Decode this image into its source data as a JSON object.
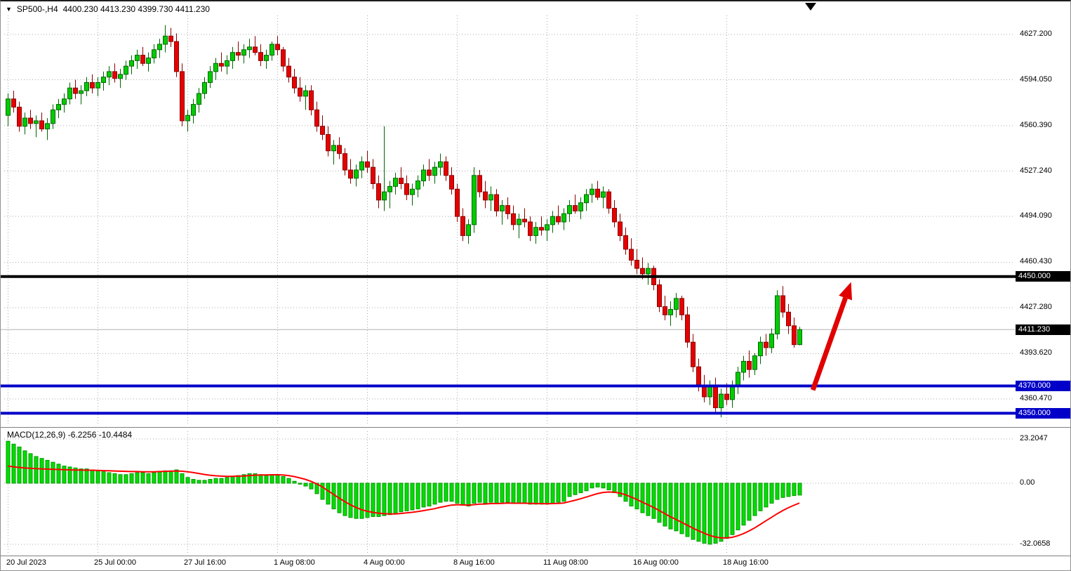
{
  "window": {
    "title": "SP500-,H4",
    "ohlc_text": "4400.230 4413.230 4399.730 4411.230"
  },
  "colors": {
    "background": "#FFFFFF",
    "grid": "#ABABAB",
    "bull": "#00CC00",
    "bull_stroke": "#006600",
    "bear": "#E60000",
    "bear_stroke": "#8B0000",
    "macd_bar": "#00DD00",
    "macd_bar_stroke": "#009900",
    "signal_line": "#FF0000",
    "current_price_line": "#B4B4B4",
    "badge_black": "#000000",
    "badge_blue": "#0000C8",
    "arrow": "#E00000",
    "text": "#000000"
  },
  "chart_data": [
    {
      "type": "candlestick",
      "symbol": "SP500-",
      "timeframe": "H4",
      "x_ticks": [
        {
          "label": "20 Jul 2023",
          "index": 0
        },
        {
          "label": "25 Jul 00:00",
          "index": 16
        },
        {
          "label": "27 Jul 16:00",
          "index": 32
        },
        {
          "label": "1 Aug 08:00",
          "index": 48
        },
        {
          "label": "4 Aug 00:00",
          "index": 64
        },
        {
          "label": "8 Aug 16:00",
          "index": 80
        },
        {
          "label": "11 Aug 08:00",
          "index": 96
        },
        {
          "label": "16 Aug 00:00",
          "index": 112
        },
        {
          "label": "18 Aug 16:00",
          "index": 128
        }
      ],
      "y_ticks": [
        {
          "label": "4627.200",
          "price": 4627.2
        },
        {
          "label": "4594.050",
          "price": 4594.05
        },
        {
          "label": "4560.390",
          "price": 4560.39
        },
        {
          "label": "4527.240",
          "price": 4527.24
        },
        {
          "label": "4494.090",
          "price": 4494.09
        },
        {
          "label": "4460.430",
          "price": 4460.43
        },
        {
          "label": "4427.280",
          "price": 4427.28
        },
        {
          "label": "4393.620",
          "price": 4393.62
        },
        {
          "label": "4360.470",
          "price": 4360.47
        }
      ],
      "ohlc": [
        [
          4568,
          4584,
          4560,
          4580
        ],
        [
          4580,
          4586,
          4570,
          4574
        ],
        [
          4574,
          4578,
          4556,
          4560
        ],
        [
          4560,
          4570,
          4554,
          4566
        ],
        [
          4566,
          4572,
          4558,
          4562
        ],
        [
          4562,
          4568,
          4552,
          4564
        ],
        [
          4564,
          4570,
          4556,
          4558
        ],
        [
          4558,
          4566,
          4550,
          4562
        ],
        [
          4562,
          4576,
          4558,
          4572
        ],
        [
          4572,
          4580,
          4566,
          4576
        ],
        [
          4576,
          4584,
          4570,
          4580
        ],
        [
          4580,
          4592,
          4576,
          4588
        ],
        [
          4588,
          4594,
          4580,
          4584
        ],
        [
          4584,
          4590,
          4576,
          4586
        ],
        [
          4586,
          4596,
          4582,
          4592
        ],
        [
          4592,
          4598,
          4584,
          4588
        ],
        [
          4588,
          4596,
          4582,
          4592
        ],
        [
          4592,
          4600,
          4586,
          4596
        ],
        [
          4596,
          4604,
          4590,
          4600
        ],
        [
          4600,
          4606,
          4592,
          4595
        ],
        [
          4595,
          4602,
          4588,
          4598
        ],
        [
          4598,
          4608,
          4594,
          4604
        ],
        [
          4604,
          4612,
          4598,
          4608
        ],
        [
          4608,
          4616,
          4602,
          4612
        ],
        [
          4612,
          4618,
          4604,
          4606
        ],
        [
          4606,
          4614,
          4600,
          4610
        ],
        [
          4610,
          4620,
          4606,
          4616
        ],
        [
          4616,
          4624,
          4610,
          4620
        ],
        [
          4620,
          4634,
          4614,
          4626
        ],
        [
          4626,
          4632,
          4618,
          4622
        ],
        [
          4622,
          4628,
          4596,
          4600
        ],
        [
          4600,
          4606,
          4560,
          4564
        ],
        [
          4564,
          4572,
          4556,
          4568
        ],
        [
          4568,
          4580,
          4562,
          4576
        ],
        [
          4576,
          4588,
          4570,
          4584
        ],
        [
          4584,
          4596,
          4580,
          4592
        ],
        [
          4592,
          4604,
          4588,
          4600
        ],
        [
          4600,
          4610,
          4594,
          4606
        ],
        [
          4606,
          4614,
          4600,
          4604
        ],
        [
          4604,
          4612,
          4598,
          4608
        ],
        [
          4608,
          4618,
          4602,
          4614
        ],
        [
          4614,
          4622,
          4608,
          4612
        ],
        [
          4612,
          4620,
          4606,
          4616
        ],
        [
          4616,
          4624,
          4610,
          4618
        ],
        [
          4618,
          4626,
          4612,
          4614
        ],
        [
          4614,
          4620,
          4604,
          4608
        ],
        [
          4608,
          4616,
          4602,
          4612
        ],
        [
          4612,
          4622,
          4608,
          4620
        ],
        [
          4620,
          4626,
          4612,
          4616
        ],
        [
          4616,
          4618,
          4600,
          4604
        ],
        [
          4604,
          4610,
          4592,
          4596
        ],
        [
          4596,
          4602,
          4584,
          4588
        ],
        [
          4588,
          4596,
          4578,
          4582
        ],
        [
          4582,
          4590,
          4572,
          4586
        ],
        [
          4586,
          4590,
          4568,
          4572
        ],
        [
          4572,
          4578,
          4556,
          4560
        ],
        [
          4560,
          4568,
          4550,
          4554
        ],
        [
          4554,
          4560,
          4538,
          4542
        ],
        [
          4542,
          4550,
          4532,
          4546
        ],
        [
          4546,
          4552,
          4536,
          4540
        ],
        [
          4540,
          4544,
          4524,
          4528
        ],
        [
          4528,
          4536,
          4518,
          4522
        ],
        [
          4522,
          4532,
          4516,
          4528
        ],
        [
          4528,
          4538,
          4522,
          4534
        ],
        [
          4534,
          4542,
          4526,
          4530
        ],
        [
          4530,
          4536,
          4514,
          4518
        ],
        [
          4518,
          4524,
          4500,
          4506
        ],
        [
          4506,
          4560,
          4498,
          4512
        ],
        [
          4512,
          4520,
          4500,
          4516
        ],
        [
          4516,
          4526,
          4510,
          4522
        ],
        [
          4522,
          4530,
          4514,
          4518
        ],
        [
          4518,
          4524,
          4506,
          4510
        ],
        [
          4510,
          4518,
          4502,
          4514
        ],
        [
          4514,
          4524,
          4508,
          4520
        ],
        [
          4520,
          4532,
          4516,
          4528
        ],
        [
          4528,
          4536,
          4520,
          4524
        ],
        [
          4524,
          4534,
          4518,
          4530
        ],
        [
          4530,
          4540,
          4524,
          4534
        ],
        [
          4534,
          4538,
          4520,
          4524
        ],
        [
          4524,
          4530,
          4510,
          4514
        ],
        [
          4514,
          4518,
          4490,
          4494
        ],
        [
          4494,
          4500,
          4476,
          4480
        ],
        [
          4480,
          4492,
          4474,
          4488
        ],
        [
          4488,
          4530,
          4482,
          4524
        ],
        [
          4524,
          4528,
          4508,
          4512
        ],
        [
          4512,
          4520,
          4500,
          4506
        ],
        [
          4506,
          4516,
          4498,
          4510
        ],
        [
          4510,
          4514,
          4494,
          4498
        ],
        [
          4498,
          4506,
          4488,
          4502
        ],
        [
          4502,
          4508,
          4492,
          4496
        ],
        [
          4496,
          4502,
          4484,
          4488
        ],
        [
          4488,
          4496,
          4478,
          4492
        ],
        [
          4492,
          4500,
          4486,
          4490
        ],
        [
          4490,
          4494,
          4476,
          4480
        ],
        [
          4480,
          4490,
          4474,
          4486
        ],
        [
          4486,
          4494,
          4480,
          4484
        ],
        [
          4484,
          4492,
          4476,
          4488
        ],
        [
          4488,
          4498,
          4482,
          4494
        ],
        [
          4494,
          4502,
          4488,
          4490
        ],
        [
          4490,
          4500,
          4484,
          4496
        ],
        [
          4496,
          4506,
          4490,
          4502
        ],
        [
          4502,
          4510,
          4496,
          4498
        ],
        [
          4498,
          4508,
          4492,
          4504
        ],
        [
          4504,
          4514,
          4498,
          4510
        ],
        [
          4510,
          4518,
          4504,
          4514
        ],
        [
          4514,
          4520,
          4506,
          4508
        ],
        [
          4508,
          4516,
          4500,
          4512
        ],
        [
          4512,
          4514,
          4496,
          4500
        ],
        [
          4500,
          4506,
          4486,
          4490
        ],
        [
          4490,
          4496,
          4476,
          4480
        ],
        [
          4480,
          4486,
          4466,
          4470
        ],
        [
          4470,
          4478,
          4458,
          4462
        ],
        [
          4462,
          4470,
          4452,
          4456
        ],
        [
          4456,
          4464,
          4448,
          4452
        ],
        [
          4452,
          4460,
          4444,
          4456
        ],
        [
          4456,
          4458,
          4440,
          4444
        ],
        [
          4444,
          4448,
          4424,
          4428
        ],
        [
          4428,
          4436,
          4418,
          4422
        ],
        [
          4422,
          4432,
          4414,
          4426
        ],
        [
          4426,
          4438,
          4420,
          4434
        ],
        [
          4434,
          4436,
          4418,
          4422
        ],
        [
          4422,
          4428,
          4398,
          4402
        ],
        [
          4402,
          4408,
          4380,
          4384
        ],
        [
          4384,
          4390,
          4366,
          4370
        ],
        [
          4370,
          4378,
          4358,
          4362
        ],
        [
          4362,
          4374,
          4356,
          4370
        ],
        [
          4370,
          4376,
          4350,
          4354
        ],
        [
          4354,
          4368,
          4347,
          4364
        ],
        [
          4364,
          4372,
          4356,
          4360
        ],
        [
          4360,
          4374,
          4354,
          4370
        ],
        [
          4370,
          4384,
          4364,
          4380
        ],
        [
          4380,
          4392,
          4374,
          4388
        ],
        [
          4388,
          4396,
          4376,
          4382
        ],
        [
          4382,
          4394,
          4378,
          4392
        ],
        [
          4392,
          4406,
          4386,
          4402
        ],
        [
          4402,
          4408,
          4392,
          4398
        ],
        [
          4398,
          4412,
          4394,
          4408
        ],
        [
          4408,
          4440,
          4404,
          4436
        ],
        [
          4436,
          4443,
          4420,
          4424
        ],
        [
          4424,
          4430,
          4408,
          4414
        ],
        [
          4414,
          4420,
          4398,
          4400.2
        ],
        [
          4400.23,
          4413.23,
          4399.73,
          4411.23
        ]
      ],
      "hlines": [
        {
          "price": 4450.0,
          "label": "4450.000",
          "color": "#000000",
          "width": 4
        },
        {
          "price": 4370.0,
          "label": "4370.000",
          "color": "#0000C8",
          "width": 4
        },
        {
          "price": 4350.0,
          "label": "4350.000",
          "color": "#0000C8",
          "width": 4
        }
      ],
      "current_price": {
        "price": 4411.23,
        "label": "4411.230"
      },
      "annotations": [
        {
          "type": "arrow",
          "from": {
            "index": 143.4,
            "price": 4367
          },
          "to": {
            "index": 150.2,
            "price": 4446
          },
          "color": "#E00000"
        },
        {
          "type": "shift-marker",
          "index": 143,
          "color": "#000000"
        }
      ]
    },
    {
      "type": "bar",
      "name": "MACD(12,26,9)",
      "label": "MACD(12,26,9) -6.2256 -10.4484",
      "macd_value": -6.2256,
      "signal_value": -10.4484,
      "ylim": [
        -32.0658,
        23.2047
      ],
      "y_ticks": [
        {
          "label": "23.2047",
          "value": 23.2047
        },
        {
          "label": "0.00",
          "value": 0
        },
        {
          "label": "-32.0658",
          "value": -32.0658
        }
      ],
      "values": [
        22,
        20.5,
        19,
        17,
        15.5,
        14,
        13,
        12,
        11,
        10,
        9,
        8.5,
        8,
        7.5,
        7.5,
        7,
        6.5,
        6,
        5.5,
        5,
        4.5,
        4.5,
        5,
        5.5,
        5.5,
        5,
        5.5,
        6,
        6.5,
        6.5,
        7,
        5,
        3,
        2,
        1.5,
        1.5,
        2,
        2.5,
        2.5,
        3,
        3.5,
        4,
        4.5,
        5,
        5,
        4.5,
        4,
        4.5,
        4.5,
        3.5,
        2.5,
        1,
        -0.5,
        -1.5,
        -3,
        -5.5,
        -8.5,
        -11,
        -13.5,
        -15.5,
        -17,
        -18,
        -18.5,
        -18.5,
        -18,
        -17.5,
        -17.5,
        -17,
        -16.5,
        -16,
        -15,
        -14.5,
        -14,
        -13.5,
        -12.5,
        -12,
        -11,
        -10,
        -9.5,
        -9.5,
        -10.5,
        -11.5,
        -12,
        -10.5,
        -10,
        -10.5,
        -10,
        -10.5,
        -10,
        -10,
        -10.5,
        -10.5,
        -10.5,
        -11,
        -11,
        -11,
        -11,
        -10.5,
        -10,
        -9.5,
        -7,
        -6,
        -5,
        -4,
        -2.5,
        -2,
        -2.5,
        -3.5,
        -5,
        -7,
        -9.5,
        -12,
        -13.5,
        -15.5,
        -17,
        -18.5,
        -20.5,
        -22.5,
        -24,
        -25,
        -26.5,
        -28,
        -29.5,
        -30.5,
        -31.5,
        -32,
        -31.5,
        -30.5,
        -29,
        -27,
        -24.5,
        -22,
        -19.5,
        -17,
        -14.5,
        -12.5,
        -10.5,
        -8.5,
        -7.5,
        -7,
        -6.5,
        -6.2256
      ],
      "signal": [
        9,
        8.6,
        8.3,
        8,
        7.8,
        7.6,
        7.5,
        7.4,
        7.3,
        7.2,
        7.1,
        7,
        6.9,
        6.9,
        6.8,
        6.8,
        6.7,
        6.6,
        6.5,
        6.4,
        6.3,
        6.2,
        6.1,
        6.1,
        6,
        6,
        6,
        6.1,
        6.2,
        6.3,
        6.4,
        6.3,
        6,
        5.6,
        5.1,
        4.6,
        4.2,
        3.9,
        3.7,
        3.6,
        3.6,
        3.7,
        3.8,
        4,
        4.2,
        4.3,
        4.3,
        4.4,
        4.4,
        4.3,
        4,
        3.5,
        2.8,
        2,
        1,
        -0.3,
        -1.9,
        -3.9,
        -5.8,
        -7.8,
        -9.6,
        -11.3,
        -12.7,
        -13.9,
        -14.7,
        -15.3,
        -15.7,
        -16,
        -16.1,
        -16.1,
        -15.9,
        -15.6,
        -15.3,
        -14.9,
        -14.4,
        -13.9,
        -13.4,
        -12.7,
        -12.1,
        -11.5,
        -11.3,
        -11.4,
        -11.5,
        -11.3,
        -11,
        -10.9,
        -10.7,
        -10.7,
        -10.6,
        -10.4,
        -10.5,
        -10.5,
        -10.5,
        -10.6,
        -10.7,
        -10.7,
        -10.8,
        -10.7,
        -10.6,
        -10.4,
        -9.7,
        -9,
        -8.2,
        -7.3,
        -6.4,
        -5.5,
        -4.9,
        -4.6,
        -4.7,
        -5.2,
        -6,
        -7.2,
        -8.5,
        -9.9,
        -11.3,
        -12.7,
        -14.3,
        -15.9,
        -17.6,
        -19,
        -20.5,
        -22,
        -23.5,
        -24.9,
        -26.2,
        -27.4,
        -28.2,
        -28.7,
        -28.7,
        -28.4,
        -27.6,
        -26.5,
        -25.1,
        -23.5,
        -21.7,
        -19.8,
        -18,
        -16.1,
        -14.4,
        -12.9,
        -11.6,
        -10.4484
      ]
    }
  ]
}
